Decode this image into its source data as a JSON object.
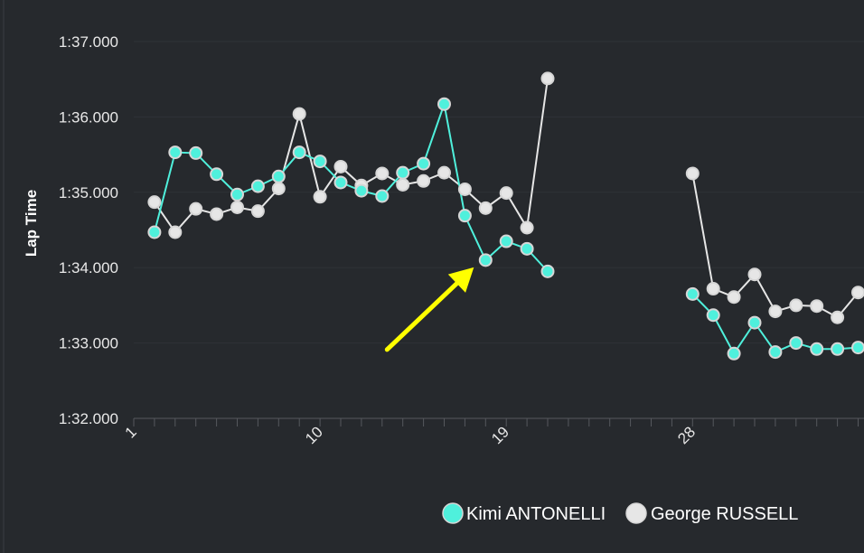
{
  "chart_data": {
    "type": "line",
    "ylabel": "Lap Time",
    "xlabel": "",
    "x_tick_labels": [
      "1",
      "10",
      "19",
      "28"
    ],
    "y_tick_labels": [
      "1:32.000",
      "1:33.000",
      "1:34.000",
      "1:35.000",
      "1:36.000",
      "1:37.000"
    ],
    "ylim": [
      92,
      97
    ],
    "xlim": [
      1,
      37
    ],
    "grid": true,
    "legend_position": "bottom",
    "series": [
      {
        "name": "Kimi ANTONELLI",
        "color": "#4ff0dc",
        "x": [
          2,
          3,
          4,
          5,
          6,
          7,
          8,
          9,
          10,
          11,
          12,
          13,
          14,
          15,
          16,
          17,
          18,
          19,
          20,
          21,
          28,
          29,
          30,
          31,
          32,
          33,
          34,
          35,
          36
        ],
        "y": [
          94.47,
          95.53,
          95.52,
          95.24,
          94.97,
          95.08,
          95.21,
          95.53,
          95.41,
          95.13,
          95.02,
          94.95,
          95.26,
          95.38,
          96.17,
          94.69,
          94.1,
          94.35,
          94.25,
          93.95,
          93.65,
          93.37,
          92.86,
          93.27,
          92.88,
          93.0,
          92.92,
          92.92,
          92.94
        ]
      },
      {
        "name": "George RUSSELL",
        "color": "#e6e6e6",
        "x": [
          2,
          3,
          4,
          5,
          6,
          7,
          8,
          9,
          10,
          11,
          12,
          13,
          14,
          15,
          16,
          17,
          18,
          19,
          20,
          21,
          28,
          29,
          30,
          31,
          32,
          33,
          34,
          35,
          36
        ],
        "y": [
          94.87,
          94.47,
          94.78,
          94.71,
          94.8,
          94.75,
          95.05,
          96.04,
          94.94,
          95.34,
          95.09,
          95.25,
          95.1,
          95.15,
          95.26,
          95.04,
          94.79,
          94.99,
          94.53,
          96.51,
          95.25,
          93.72,
          93.61,
          93.91,
          93.42,
          93.5,
          93.49,
          93.34,
          93.67
        ]
      }
    ],
    "annotations": [
      {
        "type": "arrow",
        "color": "#ffff00",
        "pointing_to": {
          "x": 18,
          "y": 94.1
        }
      }
    ]
  }
}
